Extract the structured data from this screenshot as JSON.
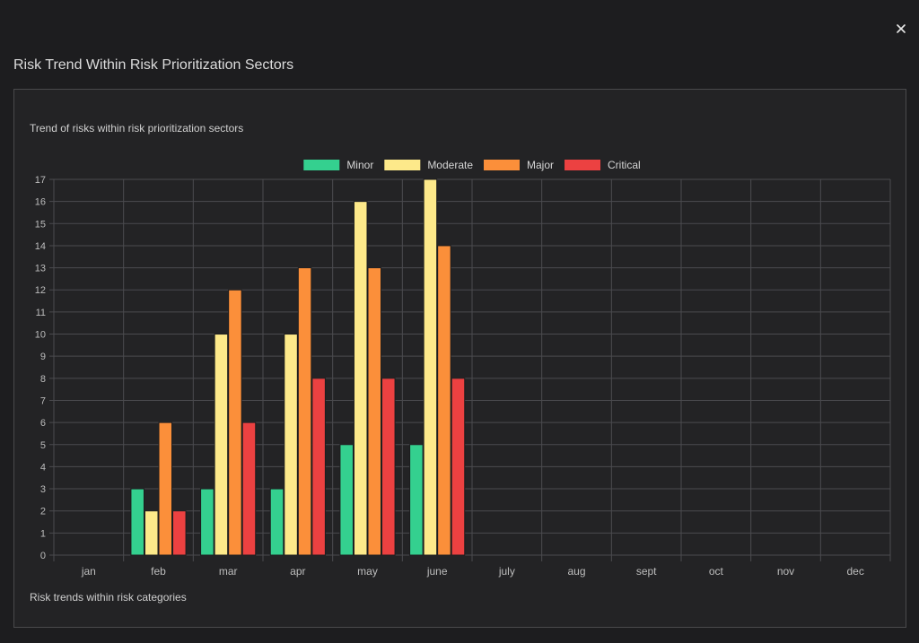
{
  "modal": {
    "title": "Risk Trend Within Risk Prioritization Sectors",
    "close_icon": "close-icon"
  },
  "panel": {
    "subtitle": "Trend of risks within risk prioritization sectors",
    "footer": "Risk trends within risk categories"
  },
  "chart_data": {
    "type": "bar",
    "title": "",
    "xlabel": "",
    "ylabel": "",
    "ylim": [
      0,
      17
    ],
    "grid": true,
    "legend_position": "top-center",
    "categories": [
      "jan",
      "feb",
      "mar",
      "apr",
      "may",
      "june",
      "july",
      "aug",
      "sept",
      "oct",
      "nov",
      "dec"
    ],
    "series": [
      {
        "name": "Minor",
        "color": "#34d08f",
        "values": [
          0,
          3,
          3,
          3,
          5,
          5,
          0,
          0,
          0,
          0,
          0,
          0
        ]
      },
      {
        "name": "Moderate",
        "color": "#fde98a",
        "values": [
          0,
          2,
          10,
          10,
          16,
          17,
          0,
          0,
          0,
          0,
          0,
          0
        ]
      },
      {
        "name": "Major",
        "color": "#fb8f3a",
        "values": [
          0,
          6,
          12,
          13,
          13,
          14,
          0,
          0,
          0,
          0,
          0,
          0
        ]
      },
      {
        "name": "Critical",
        "color": "#ec4141",
        "values": [
          0,
          2,
          6,
          8,
          8,
          8,
          0,
          0,
          0,
          0,
          0,
          0
        ]
      }
    ]
  }
}
